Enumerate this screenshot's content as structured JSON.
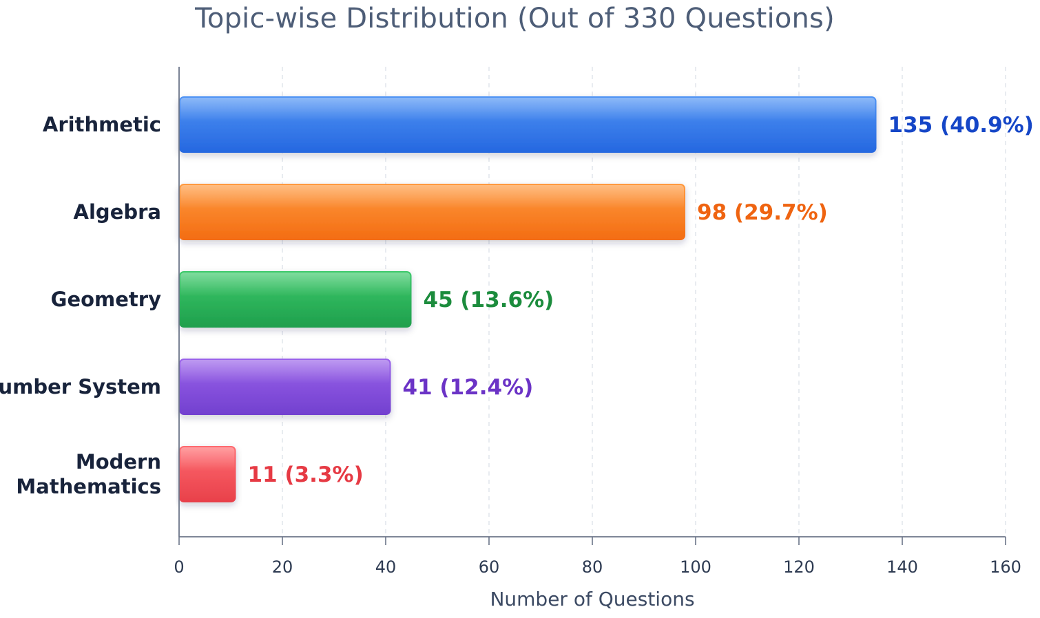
{
  "chart_data": {
    "type": "bar",
    "orientation": "horizontal",
    "title": "Topic-wise Distribution (Out of 330 Questions)",
    "xlabel": "Number of Questions",
    "ylabel": "",
    "xlim": [
      0,
      160
    ],
    "xticks": [
      0,
      20,
      40,
      60,
      80,
      100,
      120,
      140,
      160
    ],
    "grid": "vertical dashed",
    "categories": [
      [
        "Arithmetic"
      ],
      [
        "Algebra"
      ],
      [
        "Geometry"
      ],
      [
        "Number System"
      ],
      [
        "Modern",
        "Mathematics"
      ]
    ],
    "values": [
      135,
      98,
      45,
      41,
      11
    ],
    "value_labels": [
      "135 (40.9%)",
      "98 (29.7%)",
      "45 (13.6%)",
      "41 (12.4%)",
      "11 (3.3%)"
    ],
    "bar_colors": [
      [
        "#4f93f4",
        "#2567e0"
      ],
      [
        "#ff9a3f",
        "#f36c12"
      ],
      [
        "#3cc96a",
        "#1f9f4c"
      ],
      [
        "#9a62ea",
        "#7240cf"
      ],
      [
        "#ff6a6f",
        "#e8404a"
      ]
    ],
    "label_colors": [
      "#1546c7",
      "#ef6411",
      "#1c8c3d",
      "#6b33c6",
      "#e63a44"
    ]
  }
}
